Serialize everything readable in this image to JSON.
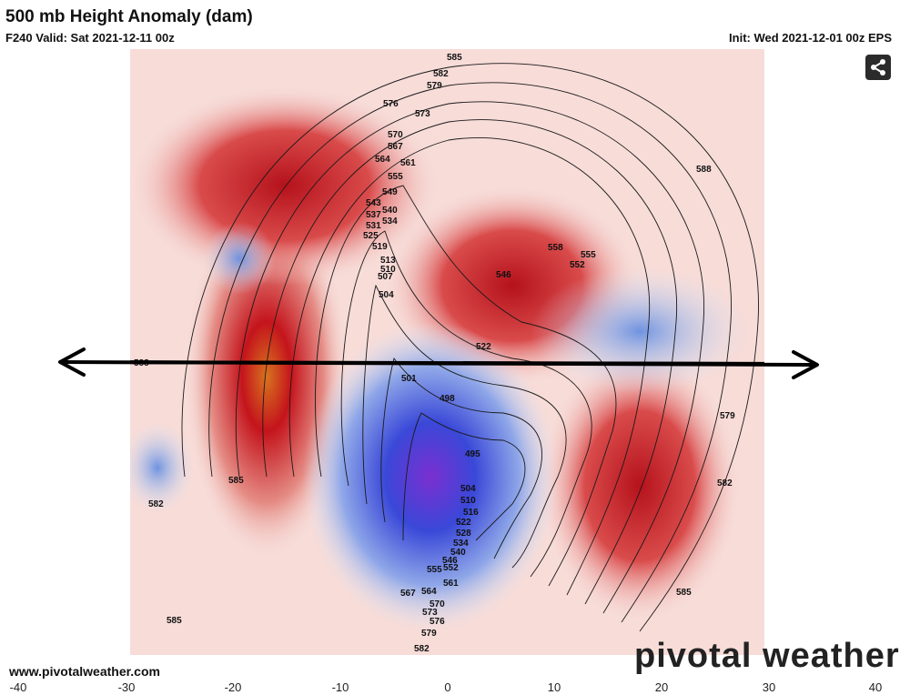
{
  "header": {
    "title": "500 mb Height Anomaly (dam)",
    "valid": "F240 Valid: Sat 2021-12-11 00z",
    "init": "Init: Wed 2021-12-01 00z EPS"
  },
  "share_icon": "share-icon",
  "footer": {
    "site": "www.pivotalweather.com",
    "brand": "pivotal weather"
  },
  "axis_ticks": [
    "-40",
    "-30",
    "-20",
    "-10",
    "0",
    "10",
    "20",
    "30",
    "40"
  ],
  "contour_labels": [
    "585",
    "582",
    "579",
    "576",
    "573",
    "570",
    "567",
    "564",
    "561",
    "555",
    "549",
    "543",
    "540",
    "537",
    "534",
    "531",
    "525",
    "519",
    "513",
    "510",
    "507",
    "504",
    "501",
    "498",
    "495",
    "504",
    "510",
    "516",
    "522",
    "528",
    "534",
    "540",
    "546",
    "552",
    "555",
    "561",
    "564",
    "567",
    "570",
    "573",
    "576",
    "579",
    "582",
    "558",
    "555",
    "552",
    "546",
    "522",
    "588",
    "579",
    "582",
    "585",
    "585",
    "582",
    "585",
    "588"
  ],
  "colors": {
    "positive_anomaly": "#c0141c",
    "strong_positive": "#e07a20",
    "negative_anomaly": "#2c5bd6",
    "strong_negative": "#7a2fd0",
    "share_bg": "#2b2b2b"
  }
}
